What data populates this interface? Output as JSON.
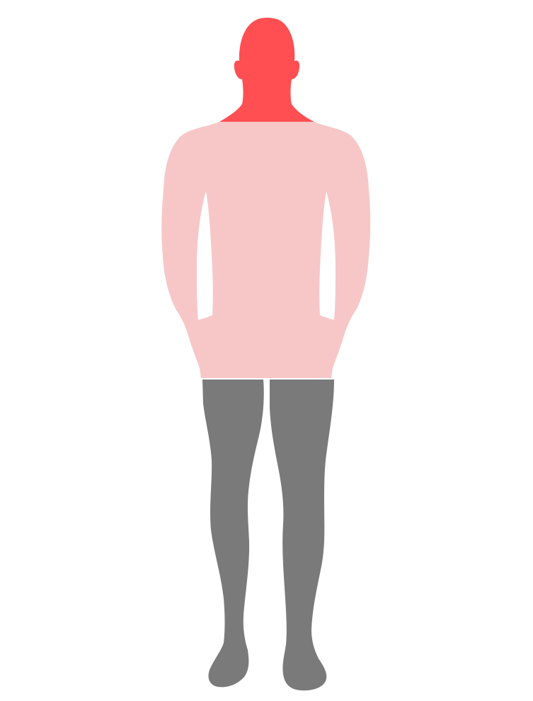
{
  "regions": [
    {
      "id": "head",
      "color": "#FF4F52"
    },
    {
      "id": "torso",
      "color": "#F7C7C8"
    },
    {
      "id": "legs",
      "color": "#7A7A7A"
    }
  ]
}
